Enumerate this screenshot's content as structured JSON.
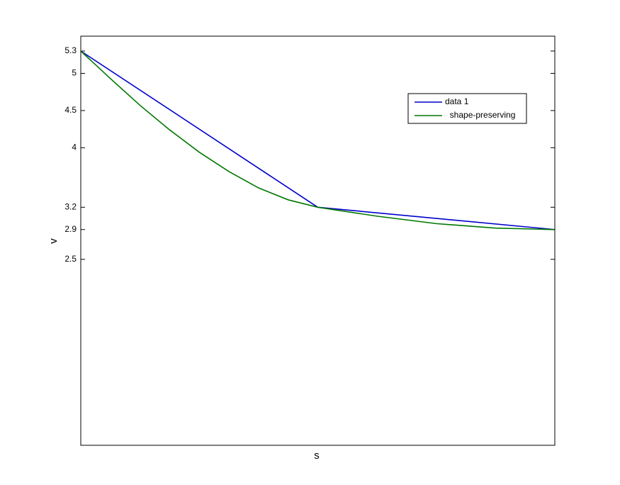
{
  "chart_data": {
    "type": "line",
    "xlabel": "s",
    "ylabel": "v",
    "xlim": [
      1,
      3
    ],
    "ylim": [
      0,
      5.5
    ],
    "yticks": [
      2.5,
      2.9,
      3.2,
      4,
      4.5,
      5,
      5.3
    ],
    "legend": "northeast",
    "series": [
      {
        "name": "data 1",
        "color": "#0000cc",
        "x": [
          1,
          2,
          3
        ],
        "values": [
          5.3,
          3.2,
          2.9
        ]
      },
      {
        "name": "  shape-preserving",
        "color": "#007700",
        "x": [
          1,
          1.125,
          1.25,
          1.375,
          1.5,
          1.625,
          1.75,
          1.875,
          2,
          2.25,
          2.5,
          2.75,
          3
        ],
        "values": [
          5.3,
          4.93,
          4.57,
          4.24,
          3.94,
          3.68,
          3.46,
          3.3,
          3.2,
          3.08,
          2.98,
          2.92,
          2.9
        ]
      }
    ]
  }
}
